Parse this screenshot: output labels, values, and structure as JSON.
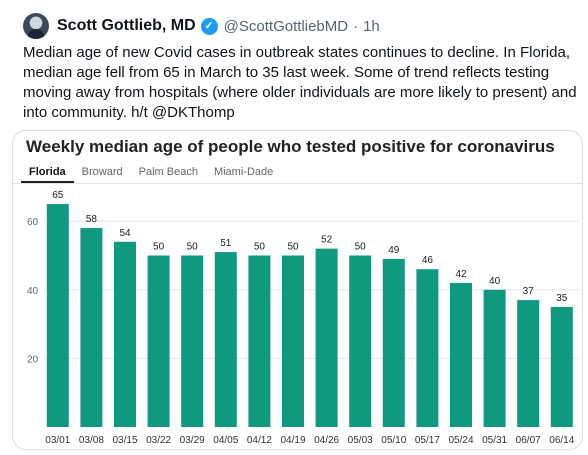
{
  "tweet": {
    "display_name": "Scott Gottlieb, MD",
    "verified_icon": "verified-badge-icon",
    "handle": "@ScottGottliebMD",
    "separator": "·",
    "time": "1h",
    "text": "Median age of new Covid cases in outbreak states continues to decline. In Florida, median age fell from 65 in March to 35 last week. Some of trend reflects testing moving away from hospitals (where older individuals are more likely to present) and into community. h/t @DKThomp"
  },
  "card": {
    "tabs": [
      {
        "label": "Florida",
        "active": true
      },
      {
        "label": "Broward",
        "active": false
      },
      {
        "label": "Palm Beach",
        "active": false
      },
      {
        "label": "Miami-Dade",
        "active": false
      }
    ]
  },
  "chart_data": {
    "type": "bar",
    "title": "Weekly median age of people who tested positive for coronavirus",
    "categories": [
      "03/01",
      "03/08",
      "03/15",
      "03/22",
      "03/29",
      "04/05",
      "04/12",
      "04/19",
      "04/26",
      "05/03",
      "05/10",
      "05/17",
      "05/24",
      "05/31",
      "06/07",
      "06/14"
    ],
    "values": [
      65,
      58,
      54,
      50,
      50,
      51,
      50,
      50,
      52,
      50,
      49,
      46,
      42,
      40,
      37,
      35
    ],
    "yticks": [
      20,
      40,
      60
    ],
    "ylim": [
      0,
      70
    ],
    "grid": true,
    "bar_color": "#0f9a7f"
  }
}
